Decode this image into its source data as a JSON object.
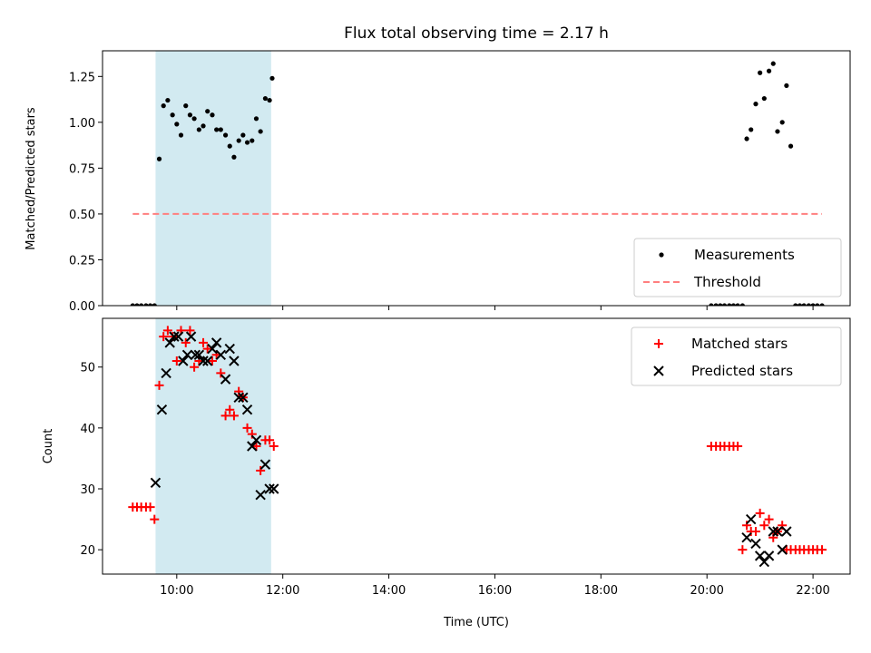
{
  "chart_data": [
    {
      "type": "scatter",
      "title": "Flux total observing time = 2.17 h",
      "ylabel": "Matched/Predicted stars",
      "xlabel": "",
      "xlim": [
        8.6,
        22.7
      ],
      "ylim": [
        0.0,
        1.39
      ],
      "x_ticks": [
        10,
        12,
        14,
        16,
        18,
        20,
        22
      ],
      "y_ticks": [
        0.0,
        0.25,
        0.5,
        0.75,
        1.0,
        1.25
      ],
      "y_tick_labels": [
        "0.00",
        "0.25",
        "0.50",
        "0.75",
        "1.00",
        "1.25"
      ],
      "grid": false,
      "legend_position": "bottom-right",
      "shaded_span": {
        "x_start": 9.6,
        "x_end": 11.78,
        "color": "#add8e6"
      },
      "series": [
        {
          "name": "Measurements",
          "marker": "dot",
          "color": "#000000",
          "x": [
            9.17,
            9.25,
            9.33,
            9.42,
            9.5,
            9.58,
            9.67,
            9.75,
            9.83,
            9.92,
            10.0,
            10.08,
            10.17,
            10.25,
            10.33,
            10.42,
            10.5,
            10.58,
            10.67,
            10.75,
            10.83,
            10.92,
            11.0,
            11.08,
            11.17,
            11.25,
            11.33,
            11.42,
            11.5,
            11.58,
            11.67,
            11.75,
            20.08,
            20.17,
            20.25,
            20.33,
            20.42,
            20.5,
            20.58,
            20.67,
            20.75,
            20.83,
            20.92,
            21.0,
            21.08,
            21.17,
            21.25,
            21.33,
            21.42,
            21.5,
            21.58,
            21.67,
            21.75,
            21.83,
            21.92,
            22.0,
            22.08,
            22.17
          ],
          "y": [
            0.0,
            0.0,
            0.0,
            0.0,
            0.0,
            0.0,
            0.8,
            1.09,
            1.12,
            1.04,
            0.99,
            0.93,
            1.09,
            1.04,
            1.02,
            0.96,
            0.98,
            1.06,
            1.04,
            0.96,
            0.96,
            0.93,
            0.87,
            0.81,
            0.9,
            0.93,
            0.89,
            0.9,
            1.02,
            0.95,
            1.13,
            1.12,
            0.0,
            0.0,
            0.0,
            0.0,
            0.0,
            0.0,
            0.0,
            0.0,
            0.91,
            0.96,
            1.1,
            1.27,
            1.13,
            1.28,
            1.32,
            0.95,
            1.0,
            1.2,
            0.87,
            0.0,
            0.0,
            0.0,
            0.0,
            0.0,
            0.0,
            0.0
          ],
          "extra_points": [
            {
              "x": 11.8,
              "y": 1.24
            }
          ]
        },
        {
          "name": "Threshold",
          "marker": "dashed-line",
          "color": "#ff7f7f",
          "x": [
            9.17,
            22.17
          ],
          "y": [
            0.5,
            0.5
          ]
        }
      ]
    },
    {
      "type": "scatter",
      "title": "",
      "ylabel": "Count",
      "xlabel": "Time (UTC)",
      "xlim": [
        8.6,
        22.7
      ],
      "ylim": [
        16.0,
        58.0
      ],
      "x_ticks": [
        10,
        12,
        14,
        16,
        18,
        20,
        22
      ],
      "x_tick_labels": [
        "10:00",
        "12:00",
        "14:00",
        "16:00",
        "18:00",
        "20:00",
        "22:00"
      ],
      "y_ticks": [
        20,
        30,
        40,
        50
      ],
      "y_tick_labels": [
        "20",
        "30",
        "40",
        "50"
      ],
      "grid": false,
      "legend_position": "top-right",
      "shaded_span": {
        "x_start": 9.6,
        "x_end": 11.78,
        "color": "#add8e6"
      },
      "series": [
        {
          "name": "Matched stars",
          "marker": "plus",
          "color": "#ff0000",
          "x": [
            9.17,
            9.25,
            9.33,
            9.42,
            9.5,
            9.58,
            9.67,
            9.75,
            9.83,
            9.92,
            10.0,
            10.08,
            10.17,
            10.25,
            10.33,
            10.42,
            10.5,
            10.58,
            10.67,
            10.75,
            10.83,
            10.92,
            11.0,
            11.08,
            11.17,
            11.25,
            11.33,
            11.42,
            11.5,
            11.58,
            11.67,
            11.75,
            11.83,
            20.08,
            20.17,
            20.25,
            20.33,
            20.42,
            20.5,
            20.58,
            20.67,
            20.75,
            20.83,
            20.92,
            21.0,
            21.08,
            21.17,
            21.25,
            21.33,
            21.42,
            21.5,
            21.58,
            21.67,
            21.75,
            21.83,
            21.92,
            22.0,
            22.08,
            22.17
          ],
          "y": [
            27,
            27,
            27,
            27,
            27,
            25,
            47,
            55,
            56,
            55,
            51,
            56,
            54,
            56,
            50,
            51,
            54,
            53,
            51,
            52,
            49,
            42,
            43,
            42,
            46,
            45,
            40,
            39,
            37,
            33,
            38,
            38,
            37,
            37,
            37,
            37,
            37,
            37,
            37,
            37,
            20,
            24,
            23,
            23,
            26,
            24,
            25,
            22,
            23,
            24,
            20,
            20,
            20,
            20,
            20,
            20,
            20,
            20,
            20
          ]
        },
        {
          "name": "Predicted stars",
          "marker": "x",
          "color": "#000000",
          "x": [
            9.6,
            9.72,
            9.8,
            9.87,
            9.95,
            10.03,
            10.12,
            10.2,
            10.27,
            10.35,
            10.42,
            10.5,
            10.58,
            10.67,
            10.75,
            10.83,
            10.92,
            11.0,
            11.08,
            11.17,
            11.25,
            11.33,
            11.42,
            11.5,
            11.58,
            11.67,
            11.75,
            11.83,
            20.75,
            20.83,
            20.92,
            21.0,
            21.08,
            21.17,
            21.25,
            21.33,
            21.42,
            21.5
          ],
          "y": [
            31,
            43,
            49,
            54,
            55,
            55,
            51,
            52,
            55,
            52,
            52,
            51,
            51,
            53,
            54,
            52,
            48,
            53,
            51,
            45,
            45,
            43,
            37,
            38,
            29,
            34,
            30,
            30,
            22,
            25,
            21,
            19,
            18,
            19,
            23,
            23,
            20,
            23
          ]
        }
      ]
    }
  ]
}
